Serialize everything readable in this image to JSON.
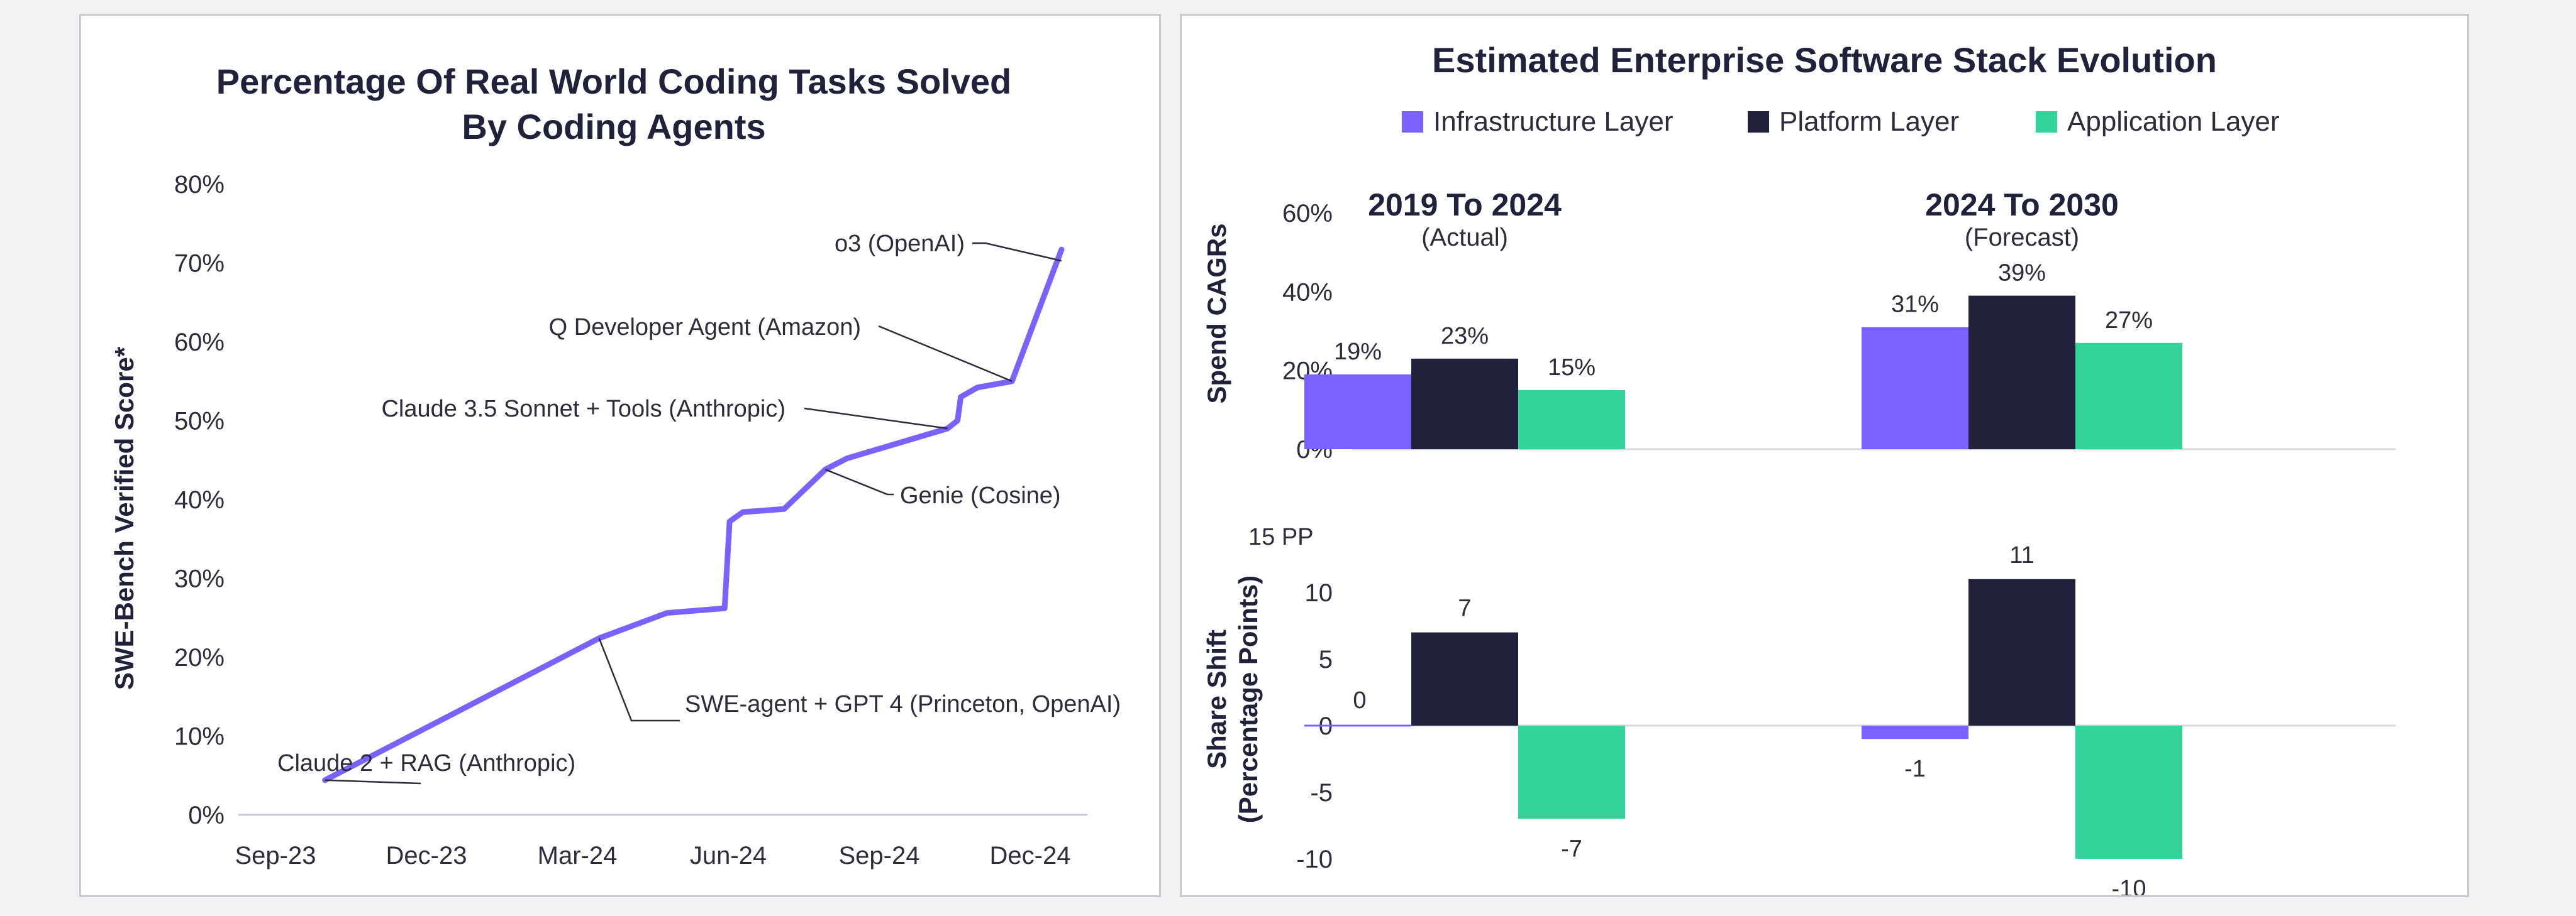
{
  "chart_data": [
    {
      "type": "line",
      "title_lines": [
        "Percentage Of Real World Coding Tasks Solved",
        "By Coding Agents"
      ],
      "ylabel": "SWE-Bench Verified Score*",
      "xlabel": "",
      "ylim": [
        0,
        80
      ],
      "y_ticks": [
        "0%",
        "10%",
        "20%",
        "30%",
        "40%",
        "50%",
        "60%",
        "70%",
        "80%"
      ],
      "x_ticks": [
        "Sep-23",
        "Dec-23",
        "Mar-24",
        "Jun-24",
        "Sep-24",
        "Dec-24"
      ],
      "series_color": "#7b61ff",
      "points": [
        {
          "x": "2023-10-01",
          "y": 4.4
        },
        {
          "x": "2024-03-15",
          "y": 22.4
        },
        {
          "x": "2024-04-25",
          "y": 25.6
        },
        {
          "x": "2024-05-30",
          "y": 26.2
        },
        {
          "x": "2024-06-02",
          "y": 37.2
        },
        {
          "x": "2024-06-10",
          "y": 38.4
        },
        {
          "x": "2024-07-05",
          "y": 38.8
        },
        {
          "x": "2024-07-30",
          "y": 43.8
        },
        {
          "x": "2024-08-12",
          "y": 45.2
        },
        {
          "x": "2024-10-12",
          "y": 49.0
        },
        {
          "x": "2024-10-18",
          "y": 50.0
        },
        {
          "x": "2024-10-20",
          "y": 53.0
        },
        {
          "x": "2024-10-30",
          "y": 54.2
        },
        {
          "x": "2024-11-20",
          "y": 55.0
        },
        {
          "x": "2024-12-20",
          "y": 71.7
        }
      ],
      "annotations": [
        {
          "text": "Claude 2 + RAG (Anthropic)",
          "point_index": 0
        },
        {
          "text": "SWE-agent + GPT 4 (Princeton, OpenAI)",
          "point_index": 1
        },
        {
          "text": "Genie (Cosine)",
          "point_index": 7
        },
        {
          "text": "Claude 3.5 Sonnet + Tools (Anthropic)",
          "point_index": 9
        },
        {
          "text": "Q Developer Agent (Amazon)",
          "point_index": 13
        },
        {
          "text": "o3 (OpenAI)",
          "point_index": 14
        }
      ]
    },
    {
      "type": "bar",
      "title": "Estimated Enterprise Software Stack Evolution",
      "legend_position": "top",
      "legend": [
        {
          "name": "Infrastructure Layer",
          "color": "#7b61ff"
        },
        {
          "name": "Platform Layer",
          "color": "#20213a"
        },
        {
          "name": "Application Layer",
          "color": "#34d399"
        }
      ],
      "groups": [
        {
          "label": "2019 To 2024",
          "sublabel": "(Actual)"
        },
        {
          "label": "2024 To 2030",
          "sublabel": "(Forecast)"
        }
      ],
      "top": {
        "ylabel": "Spend CAGRs",
        "ylim": [
          0,
          60
        ],
        "y_ticks": [
          "0%",
          "20%",
          "40%",
          "60%"
        ],
        "series": [
          {
            "name": "Infrastructure Layer",
            "values": [
              19,
              31
            ],
            "labels": [
              "19%",
              "31%"
            ]
          },
          {
            "name": "Platform Layer",
            "values": [
              23,
              39
            ],
            "labels": [
              "23%",
              "39%"
            ]
          },
          {
            "name": "Application Layer",
            "values": [
              15,
              27
            ],
            "labels": [
              "15%",
              "27%"
            ]
          }
        ]
      },
      "bottom": {
        "ylabel_lines": [
          "Share Shift",
          "(Percentage Points)"
        ],
        "ylim": [
          -10,
          15
        ],
        "unit_label": "15 PP",
        "y_ticks": [
          "10",
          "5",
          "0",
          "-5",
          "-10"
        ],
        "series": [
          {
            "name": "Infrastructure Layer",
            "values": [
              0,
              -1
            ],
            "labels": [
              "0",
              "-1"
            ]
          },
          {
            "name": "Platform Layer",
            "values": [
              7,
              11
            ],
            "labels": [
              "7",
              "11"
            ]
          },
          {
            "name": "Application Layer",
            "values": [
              -7,
              -10
            ],
            "labels": [
              "-7",
              "-10"
            ]
          }
        ]
      }
    }
  ]
}
